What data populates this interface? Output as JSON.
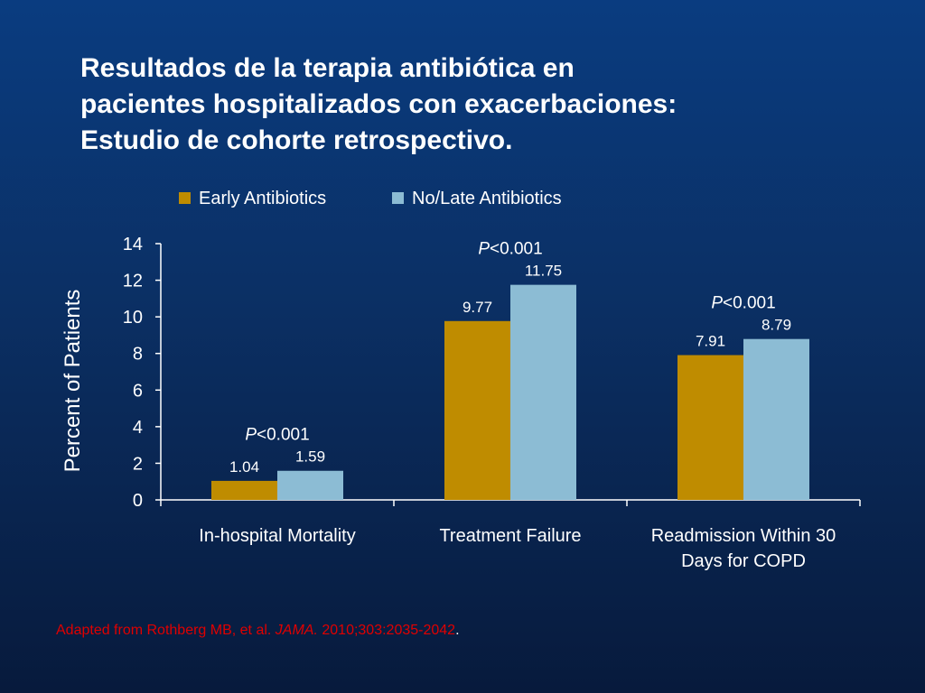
{
  "title_lines": [
    "Resultados de la terapia antibiótica en",
    "pacientes hospitalizados con exacerbaciones:",
    "Estudio de cohorte retrospectivo."
  ],
  "colors": {
    "early": "#bf8c00",
    "late": "#8cbcd4",
    "citation": "#e00000",
    "text": "#ffffff"
  },
  "citation": {
    "prefix": "Adapted from Rothberg MB, et al. ",
    "journal": "JAMA.",
    "details": " 2010;303:2035-2042",
    "suffix": "."
  },
  "chart_data": {
    "type": "bar",
    "categories": [
      [
        "In-hospital Mortality"
      ],
      [
        "Treatment Failure"
      ],
      [
        "Readmission Within 30",
        "Days for COPD"
      ]
    ],
    "series": [
      {
        "name": "Early Antibiotics",
        "values": [
          1.04,
          9.77,
          7.91
        ],
        "labels": [
          "1.04",
          "9.77",
          "7.91"
        ]
      },
      {
        "name": "No/Late Antibiotics",
        "values": [
          1.59,
          11.75,
          8.79
        ],
        "labels": [
          "1.59",
          "11.75",
          "8.79"
        ]
      }
    ],
    "p_value_letter": "P",
    "p_value_rest": "<0.001",
    "ylabel": "Percent of Patients",
    "ylim": [
      0,
      14
    ],
    "yticks": [
      "0",
      "2",
      "4",
      "6",
      "8",
      "10",
      "12",
      "14"
    ],
    "legend_position": "top",
    "grid": false
  }
}
